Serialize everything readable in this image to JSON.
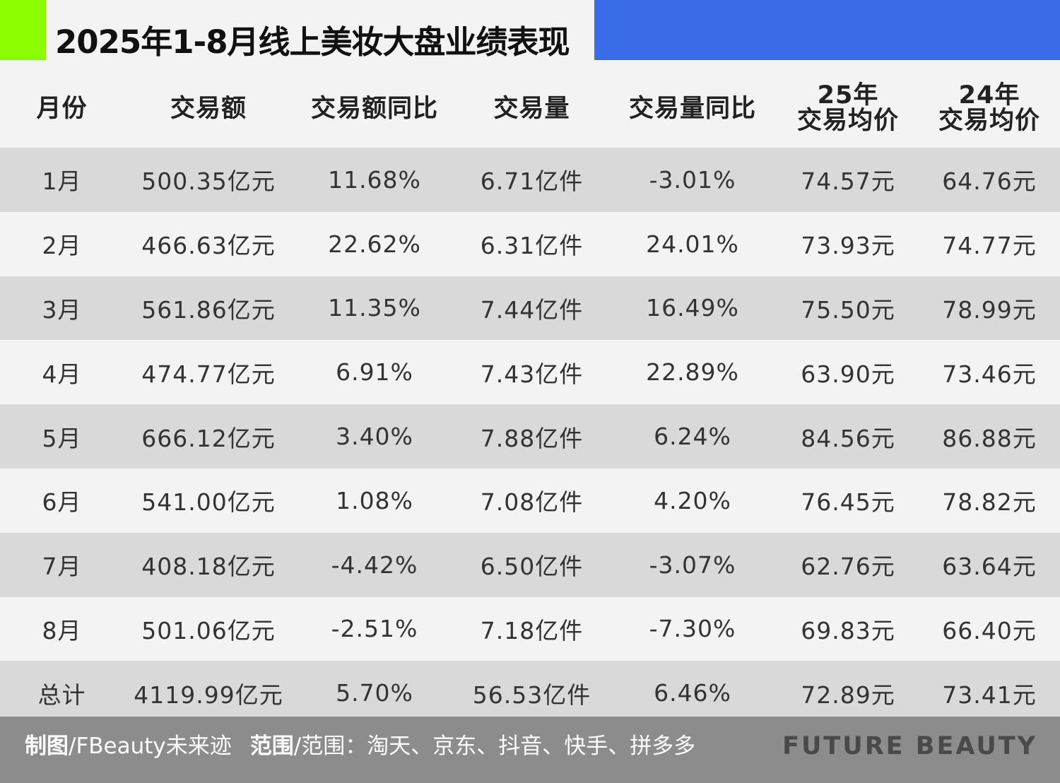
{
  "title": "2025年1-8月线上美妆大盘业绩表现",
  "colors": {
    "accent_green": "#8cfd00",
    "accent_blue": "#3a6ce8",
    "row_shade": "#d9d9d9",
    "row_light": "#f3f3f3",
    "footer_bg": "#8c8c8c"
  },
  "chart_data": {
    "type": "table",
    "title": "2025年1-8月线上美妆大盘业绩表现",
    "columns": [
      {
        "key": "month",
        "label": "月份"
      },
      {
        "key": "gmv",
        "label": "交易额"
      },
      {
        "key": "gmv_yoy",
        "label": "交易额同比"
      },
      {
        "key": "volume",
        "label": "交易量"
      },
      {
        "key": "volume_yoy",
        "label": "交易量同比"
      },
      {
        "key": "avg_price_25",
        "label_line1": "25年",
        "label_line2": "交易均价"
      },
      {
        "key": "avg_price_24",
        "label_line1": "24年",
        "label_line2": "交易均价"
      }
    ],
    "rows": [
      {
        "month": "1月",
        "gmv": "500.35亿元",
        "gmv_yoy": "11.68%",
        "volume": "6.71亿件",
        "volume_yoy": "-3.01%",
        "avg_price_25": "74.57元",
        "avg_price_24": "64.76元"
      },
      {
        "month": "2月",
        "gmv": "466.63亿元",
        "gmv_yoy": "22.62%",
        "volume": "6.31亿件",
        "volume_yoy": "24.01%",
        "avg_price_25": "73.93元",
        "avg_price_24": "74.77元"
      },
      {
        "month": "3月",
        "gmv": "561.86亿元",
        "gmv_yoy": "11.35%",
        "volume": "7.44亿件",
        "volume_yoy": "16.49%",
        "avg_price_25": "75.50元",
        "avg_price_24": "78.99元"
      },
      {
        "month": "4月",
        "gmv": "474.77亿元",
        "gmv_yoy": "6.91%",
        "volume": "7.43亿件",
        "volume_yoy": "22.89%",
        "avg_price_25": "63.90元",
        "avg_price_24": "73.46元"
      },
      {
        "month": "5月",
        "gmv": "666.12亿元",
        "gmv_yoy": "3.40%",
        "volume": "7.88亿件",
        "volume_yoy": "6.24%",
        "avg_price_25": "84.56元",
        "avg_price_24": "86.88元"
      },
      {
        "month": "6月",
        "gmv": "541.00亿元",
        "gmv_yoy": "1.08%",
        "volume": "7.08亿件",
        "volume_yoy": "4.20%",
        "avg_price_25": "76.45元",
        "avg_price_24": "78.82元"
      },
      {
        "month": "7月",
        "gmv": "408.18亿元",
        "gmv_yoy": "-4.42%",
        "volume": "6.50亿件",
        "volume_yoy": "-3.07%",
        "avg_price_25": "62.76元",
        "avg_price_24": "63.64元"
      },
      {
        "month": "8月",
        "gmv": "501.06亿元",
        "gmv_yoy": "-2.51%",
        "volume": "7.18亿件",
        "volume_yoy": "-7.30%",
        "avg_price_25": "69.83元",
        "avg_price_24": "66.40元"
      },
      {
        "month": "总计",
        "gmv": "4119.99亿元",
        "gmv_yoy": "5.70%",
        "volume": "56.53亿件",
        "volume_yoy": "6.46%",
        "avg_price_25": "72.89元",
        "avg_price_24": "73.41元"
      }
    ]
  },
  "footer": {
    "chart_by_label": "制图",
    "chart_by_value": "/FBeauty未来迹",
    "scope_label": "范围",
    "scope_value": "/范围：淘天、京东、抖音、快手、拼多多",
    "brand": "FUTURE BEAUTY"
  }
}
